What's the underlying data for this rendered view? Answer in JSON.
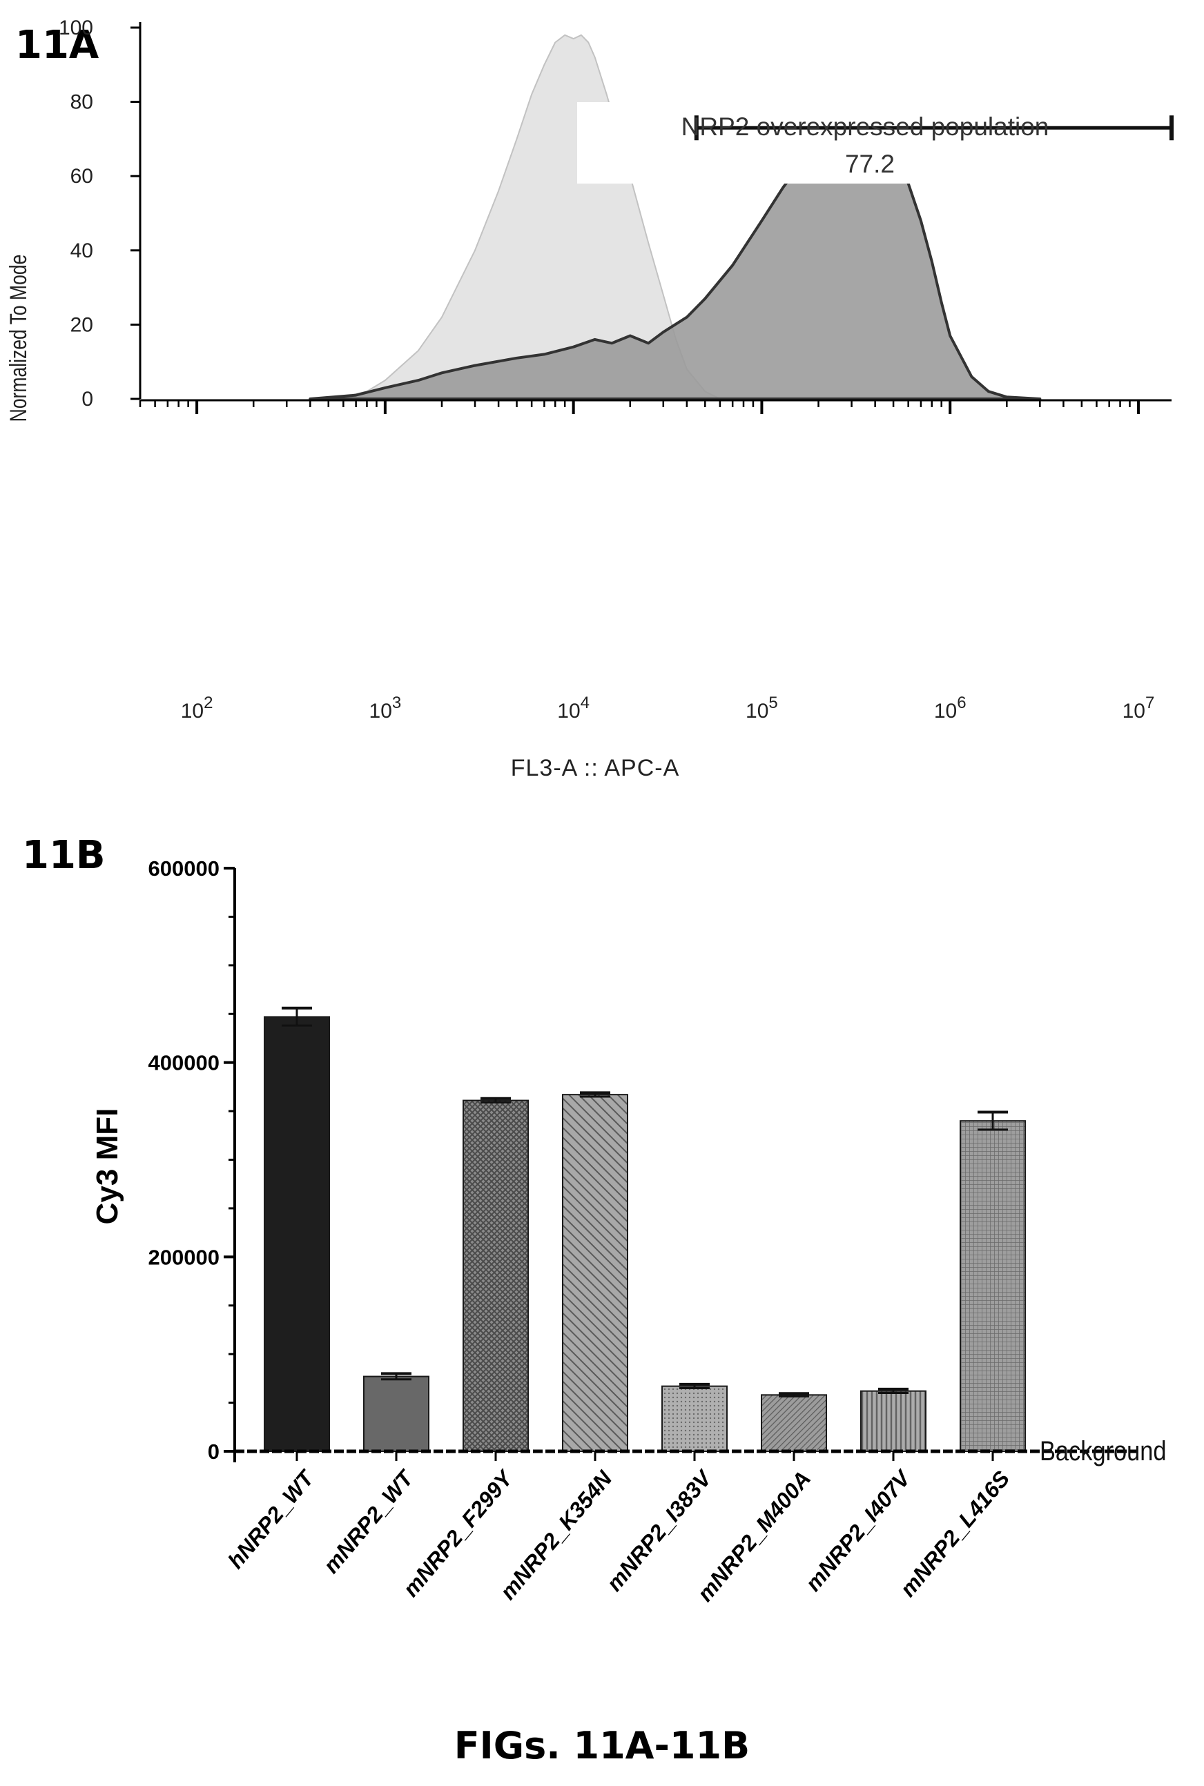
{
  "caption": "FIGs. 11A-11B",
  "chart_data": [
    {
      "panel": "11A",
      "type": "area",
      "xlabel": "FL3-A :: APC-A",
      "ylabel": "Normalized To Mode",
      "x_scale": "log",
      "xlim": [
        50,
        15000000
      ],
      "ylim": [
        0,
        100
      ],
      "x_ticks": [
        {
          "value": 100,
          "label": "10",
          "exp": "2"
        },
        {
          "value": 1000,
          "label": "10",
          "exp": "3"
        },
        {
          "value": 10000,
          "label": "10",
          "exp": "4"
        },
        {
          "value": 100000,
          "label": "10",
          "exp": "5"
        },
        {
          "value": 1000000,
          "label": "10",
          "exp": "6"
        },
        {
          "value": 10000000,
          "label": "10",
          "exp": "7"
        }
      ],
      "y_ticks": [
        "0",
        "20",
        "40",
        "60",
        "80",
        "100"
      ],
      "series": [
        {
          "color": "#e4e4e4",
          "stroke": "#c2c2c2",
          "x": [
            400,
            600,
            800,
            1000,
            1500,
            2000,
            3000,
            4000,
            5000,
            6000,
            7000,
            8000,
            9000,
            10000,
            11000,
            12000,
            13000,
            15000,
            18000,
            20000,
            25000,
            30000,
            35000,
            40000,
            50000,
            60000
          ],
          "y": [
            0,
            0.5,
            2,
            5,
            13,
            22,
            40,
            56,
            70,
            82,
            90,
            96,
            98,
            97,
            98,
            96,
            92,
            82,
            68,
            60,
            42,
            28,
            16,
            8,
            2,
            0
          ]
        },
        {
          "color": "#9a9a9a",
          "stroke": "#333333",
          "x": [
            400,
            700,
            1000,
            1500,
            2000,
            3000,
            5000,
            7000,
            10000,
            13000,
            16000,
            20000,
            25000,
            30000,
            40000,
            50000,
            70000,
            100000,
            130000,
            160000,
            200000,
            250000,
            300000,
            350000,
            400000,
            500000,
            600000,
            700000,
            800000,
            900000,
            1000000,
            1300000,
            1600000,
            2000000,
            3000000
          ],
          "y": [
            0,
            1,
            3,
            5,
            7,
            9,
            11,
            12,
            14,
            16,
            15,
            17,
            15,
            18,
            22,
            27,
            36,
            48,
            57,
            63,
            68,
            72,
            76,
            76,
            74,
            67,
            58,
            48,
            37,
            26,
            17,
            6,
            2,
            0.5,
            0
          ]
        }
      ],
      "gate": {
        "label": "NRP2 overexpressed population",
        "value": "77.2",
        "x_range": [
          45000,
          15000000
        ],
        "y": 73
      }
    },
    {
      "panel": "11B",
      "type": "bar",
      "ylabel": "Cy3 MFI",
      "ylim": [
        0,
        600000
      ],
      "y_ticks": [
        "0",
        "200000",
        "400000",
        "600000"
      ],
      "categories": [
        "hNRP2_WT",
        "mNRP2_WT",
        "mNRP2_F299Y",
        "mNRP2_K354N",
        "mNRP2_I383V",
        "mNRP2_M400A",
        "mNRP2_I407V",
        "mNRP2_L416S"
      ],
      "values": [
        447000,
        77000,
        361000,
        367000,
        67000,
        58000,
        62000,
        340000
      ],
      "errors": [
        9000,
        3000,
        2000,
        2000,
        2000,
        1500,
        2000,
        9000
      ],
      "bar_fills": [
        "solid-dark",
        "solid-mid",
        "crosshatch",
        "diagonal",
        "dots",
        "diagonal-fine",
        "vertical",
        "grid"
      ],
      "background_line": {
        "label": "Background",
        "value": 0
      }
    }
  ]
}
